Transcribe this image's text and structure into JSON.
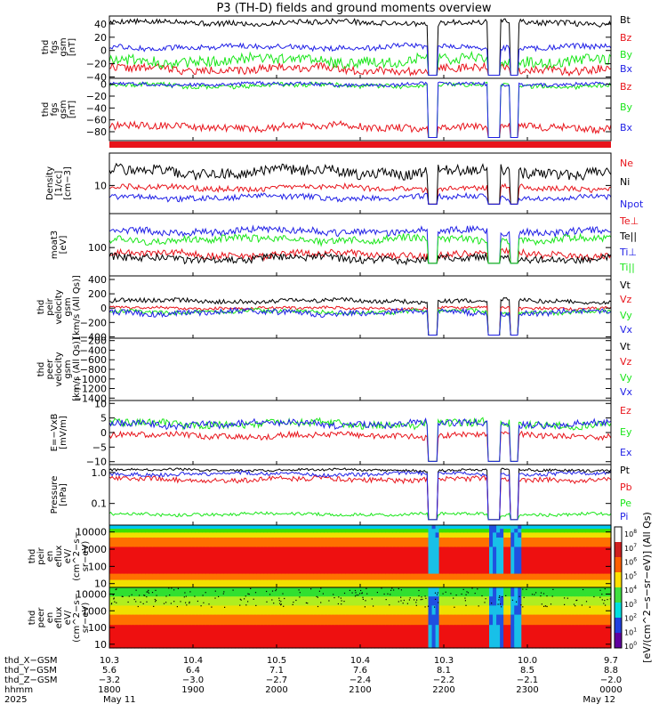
{
  "title": "P3 (TH-D) fields and ground moments overview",
  "colors": {
    "black": "#000000",
    "red": "#e8141b",
    "green": "#19e619",
    "blue": "#1f1fe6",
    "dark": "#111111"
  },
  "chart_data": [
    {
      "type": "line",
      "panel": "fgs",
      "ylabel": [
        "thd",
        "fgs",
        "gsm",
        "[nT]"
      ],
      "ytick_labels": [
        "40",
        "20",
        "0",
        "−20",
        "−40"
      ],
      "ytick_values": [
        40,
        20,
        0,
        -20,
        -40
      ],
      "ylim": [
        -42,
        52
      ],
      "series": [
        {
          "name": "Bt",
          "color": "black",
          "level": 42,
          "noise": 4
        },
        {
          "name": "Bz",
          "color": "red",
          "level": -28,
          "noise": 6
        },
        {
          "name": "By",
          "color": "green",
          "level": -15,
          "noise": 8
        },
        {
          "name": "Bx",
          "color": "blue",
          "level": 5,
          "noise": 4
        }
      ]
    },
    {
      "type": "line",
      "panel": "fgm",
      "ylabel": [
        "thd",
        "fgs",
        "gsm",
        "[nT]"
      ],
      "ytick_labels": [
        "0",
        "−20",
        "−40",
        "−60",
        "−80"
      ],
      "ytick_values": [
        0,
        -20,
        -40,
        -60,
        -80
      ],
      "ylim": [
        -95,
        10
      ],
      "series": [
        {
          "name": "Bz",
          "color": "red",
          "level": -72,
          "noise": 6
        },
        {
          "name": "By",
          "color": "green",
          "level": -2,
          "noise": 4
        },
        {
          "name": "Bx",
          "color": "blue",
          "level": 0,
          "noise": 3
        }
      ]
    },
    {
      "type": "line",
      "panel": "density",
      "scale": "log",
      "ylabel": [
        "Density",
        "[1/cc]",
        "[cm−3]"
      ],
      "ytick_labels": [
        "10"
      ],
      "ytick_values": [
        10
      ],
      "ylim": [
        3,
        40
      ],
      "series": [
        {
          "name": "Ne",
          "color": "red",
          "level": 9,
          "noise": 0.05
        },
        {
          "name": "Ni",
          "color": "black",
          "level": 18,
          "noise": 0.1
        },
        {
          "name": "Npot",
          "color": "blue",
          "level": 6,
          "noise": 0.05
        }
      ]
    },
    {
      "type": "line",
      "panel": "temperature",
      "scale": "log",
      "ylabel": [
        "moat3",
        "[eV]"
      ],
      "ytick_labels": [
        "100"
      ],
      "ytick_values": [
        100
      ],
      "ylim": [
        40,
        300
      ],
      "series": [
        {
          "name": "Te⊥",
          "color": "red",
          "level": 80,
          "noise": 0.05
        },
        {
          "name": "Te||",
          "color": "black",
          "level": 70,
          "noise": 0.05
        },
        {
          "name": "Ti⊥",
          "color": "blue",
          "level": 170,
          "noise": 0.05
        },
        {
          "name": "Ti||",
          "color": "green",
          "level": 130,
          "noise": 0.05
        }
      ]
    },
    {
      "type": "line",
      "panel": "peir-velocity",
      "ylabel": [
        "thd",
        "peir",
        "velocity",
        "gsm",
        "[km/s (All Qs)]"
      ],
      "ytick_labels": [
        "400",
        "200",
        "0",
        "−200",
        "−400"
      ],
      "ytick_values": [
        400,
        200,
        0,
        -200,
        -400
      ],
      "ylim": [
        -420,
        450
      ],
      "series": [
        {
          "name": "Vt",
          "color": "black",
          "level": 100,
          "noise": 30
        },
        {
          "name": "Vz",
          "color": "red",
          "level": 0,
          "noise": 20
        },
        {
          "name": "Vy",
          "color": "green",
          "level": -50,
          "noise": 30
        },
        {
          "name": "Vx",
          "color": "blue",
          "level": -60,
          "noise": 40
        }
      ]
    },
    {
      "type": "line",
      "panel": "peer-velocity",
      "ylabel": [
        "thd",
        "peer",
        "velocity",
        "gsm",
        "[km/s (All Qs)]"
      ],
      "ytick_labels": [
        "−200",
        "−400",
        "−600",
        "−800",
        "−1000",
        "−1200",
        "−1400"
      ],
      "ytick_values": [
        -200,
        -400,
        -600,
        -800,
        -1000,
        -1200,
        -1400
      ],
      "ylim": [
        -1450,
        -150
      ],
      "series": [
        {
          "name": "Vt",
          "color": "black"
        },
        {
          "name": "Vz",
          "color": "red"
        },
        {
          "name": "Vy",
          "color": "green"
        },
        {
          "name": "Vx",
          "color": "blue"
        }
      ]
    },
    {
      "type": "line",
      "panel": "efield",
      "ylabel": [
        "E=−VxB",
        "[mV/m]"
      ],
      "ytick_labels": [
        "10",
        "5",
        "0",
        "−5",
        "−10"
      ],
      "ytick_values": [
        10,
        5,
        0,
        -5,
        -10
      ],
      "ylim": [
        -11,
        11
      ],
      "series": [
        {
          "name": "Ez",
          "color": "red",
          "level": -1,
          "noise": 1
        },
        {
          "name": "Ey",
          "color": "green",
          "level": 3,
          "noise": 1.3
        },
        {
          "name": "Ex",
          "color": "blue",
          "level": 3,
          "noise": 1.2
        }
      ]
    },
    {
      "type": "line",
      "panel": "pressure",
      "scale": "log",
      "ylabel": [
        "Pressure",
        "[nPa]"
      ],
      "ytick_labels": [
        "1.0",
        "0.1"
      ],
      "ytick_values": [
        1.0,
        0.1
      ],
      "ylim": [
        0.02,
        1.8
      ],
      "series": [
        {
          "name": "Pt",
          "color": "black",
          "level": 1.2,
          "noise": 0.04
        },
        {
          "name": "Pb",
          "color": "red",
          "level": 0.6,
          "noise": 0.08
        },
        {
          "name": "Pe",
          "color": "green",
          "level": 0.045,
          "noise": 0.05
        },
        {
          "name": "Pi",
          "color": "blue",
          "level": 0.9,
          "noise": 0.06
        }
      ]
    },
    {
      "type": "heatmap",
      "panel": "peir-eflux",
      "ylabel": [
        "thd",
        "peir",
        "en",
        "eflux",
        "eV/",
        "(cm^2−s−",
        "sr−eV)"
      ],
      "ytick_labels": [
        "10000",
        "1000",
        "100",
        "10"
      ],
      "ytick_values": [
        10000,
        1000,
        100,
        10
      ],
      "ylim": [
        6,
        25000
      ],
      "scale": "log"
    },
    {
      "type": "heatmap",
      "panel": "peer-eflux",
      "ylabel": [
        "thd",
        "peer",
        "en",
        "eflux",
        "eV/",
        "(cm^2−s−",
        "sr−eV)"
      ],
      "ytick_labels": [
        "10000",
        "1000",
        "100",
        "10"
      ],
      "ytick_values": [
        10000,
        1000,
        100,
        10
      ],
      "ylim": [
        6,
        25000
      ],
      "scale": "log"
    }
  ],
  "colorbar": {
    "label": "[eV/(cm^2−s−sr−eV)] (All Qs)",
    "tick_labels": [
      "10^8",
      "10^7",
      "10^6",
      "10^5",
      "10^4",
      "10^3",
      "10^2",
      "10^1",
      "10^0"
    ]
  },
  "time_axis": {
    "row_labels": [
      "thd_X−GSM",
      "thd_Y−GSM",
      "thd_Z−GSM",
      "hhmm",
      "2025"
    ],
    "columns": [
      {
        "x": "10.3",
        "y": "5.6",
        "z": "−3.2",
        "hhmm": "1800",
        "date": "May 11"
      },
      {
        "x": "10.4",
        "y": "6.4",
        "z": "−3.0",
        "hhmm": "1900",
        "date": ""
      },
      {
        "x": "10.5",
        "y": "7.1",
        "z": "−2.7",
        "hhmm": "2000",
        "date": ""
      },
      {
        "x": "10.4",
        "y": "7.6",
        "z": "−2.4",
        "hhmm": "2100",
        "date": ""
      },
      {
        "x": "10.3",
        "y": "8.1",
        "z": "−2.2",
        "hhmm": "2200",
        "date": ""
      },
      {
        "x": "10.0",
        "y": "8.5",
        "z": "−2.1",
        "hhmm": "2300",
        "date": ""
      },
      {
        "x": "9.7",
        "y": "8.8",
        "z": "−2.0",
        "hhmm": "0000",
        "date": "May 12"
      }
    ]
  }
}
